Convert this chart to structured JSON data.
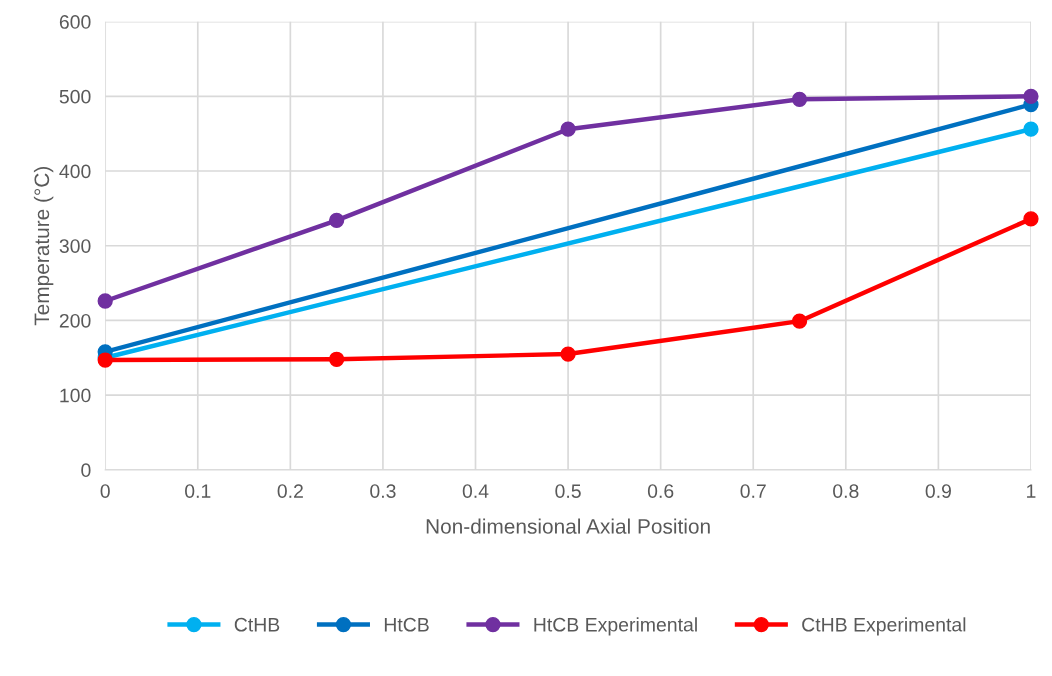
{
  "chart_data": {
    "type": "line",
    "xlabel": "Non-dimensional Axial Position",
    "ylabel": "Temperature (°C)",
    "xlim": [
      0,
      1
    ],
    "xticks": [
      0,
      0.1,
      0.2,
      0.3,
      0.4,
      0.5,
      0.6,
      0.7,
      0.8,
      0.9,
      1
    ],
    "ylim": [
      0,
      600
    ],
    "yticks": [
      0,
      100,
      200,
      300,
      400,
      500,
      600
    ],
    "grid": true,
    "legend": "bottom",
    "marker": "circle",
    "line_style": "solid",
    "series": [
      {
        "name": "CtHB",
        "color": "#00b0f0",
        "x": [
          0,
          1
        ],
        "values": [
          150,
          456
        ]
      },
      {
        "name": "HtCB",
        "color": "#0070c0",
        "x": [
          0,
          1
        ],
        "values": [
          158,
          489
        ]
      },
      {
        "name": "HtCB Experimental",
        "color": "#7030a0",
        "x": [
          0,
          0.25,
          0.5,
          0.75,
          1
        ],
        "values": [
          226,
          334,
          456,
          496,
          500
        ]
      },
      {
        "name": "CtHB Experimental",
        "color": "#ff0000",
        "x": [
          0,
          0.25,
          0.5,
          0.75,
          1
        ],
        "values": [
          147,
          148,
          155,
          199,
          336
        ]
      }
    ]
  }
}
